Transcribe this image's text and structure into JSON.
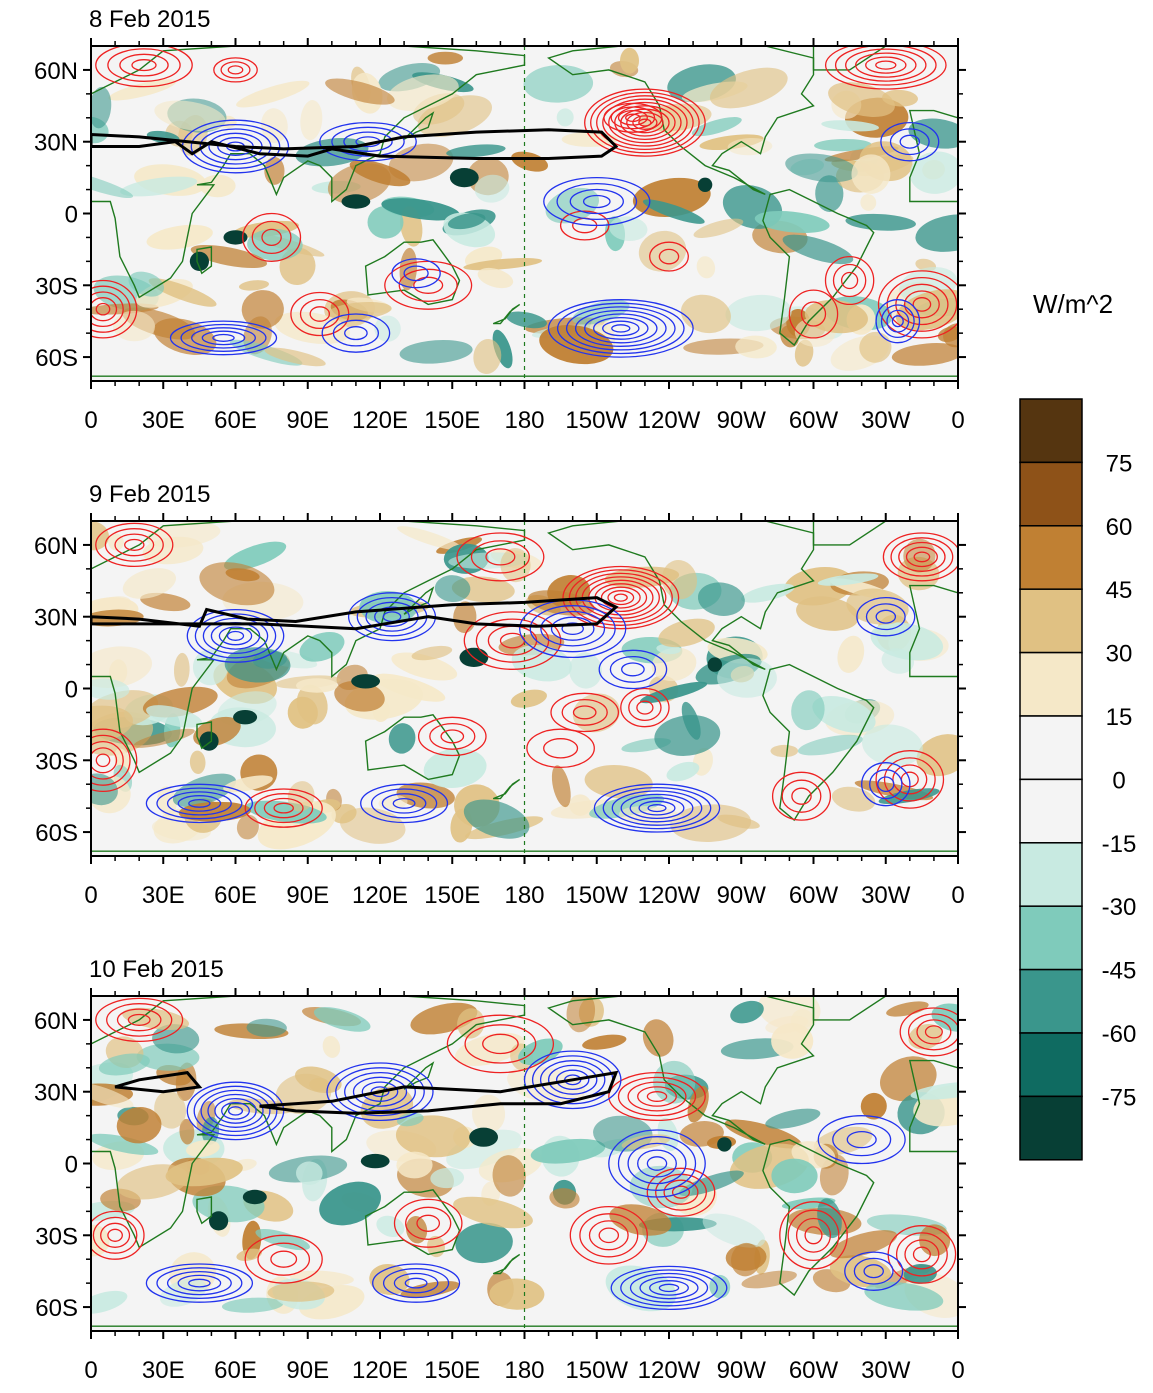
{
  "panels": [
    {
      "title": "8 Feb 2015",
      "date_key": "d8"
    },
    {
      "title": "9 Feb 2015",
      "date_key": "d9"
    },
    {
      "title": "10 Feb 2015",
      "date_key": "d10"
    }
  ],
  "axes": {
    "lon_labels": [
      "0",
      "30E",
      "60E",
      "90E",
      "120E",
      "150E",
      "180",
      "150W",
      "120W",
      "90W",
      "60W",
      "30W",
      "0"
    ],
    "lat_labels": [
      "60N",
      "30N",
      "0",
      "30S",
      "60S"
    ]
  },
  "colorbar": {
    "units": "W/m^2",
    "labels": [
      "75",
      "60",
      "45",
      "30",
      "15",
      "0",
      "-15",
      "-30",
      "-45",
      "-60",
      "-75"
    ],
    "colors": [
      "#553510",
      "#8e5218",
      "#c08033",
      "#e0c183",
      "#f5e8c8",
      "#f4f4f4",
      "#f4f4f4",
      "#c8eae1",
      "#7fcbbb",
      "#3a968c",
      "#0f6b61",
      "#073f35"
    ]
  },
  "colors": {
    "positive_contour": "#ee2222",
    "negative_contour": "#2233ee",
    "zero_contour": "#000000",
    "coastline": "#1f7a1f"
  }
}
